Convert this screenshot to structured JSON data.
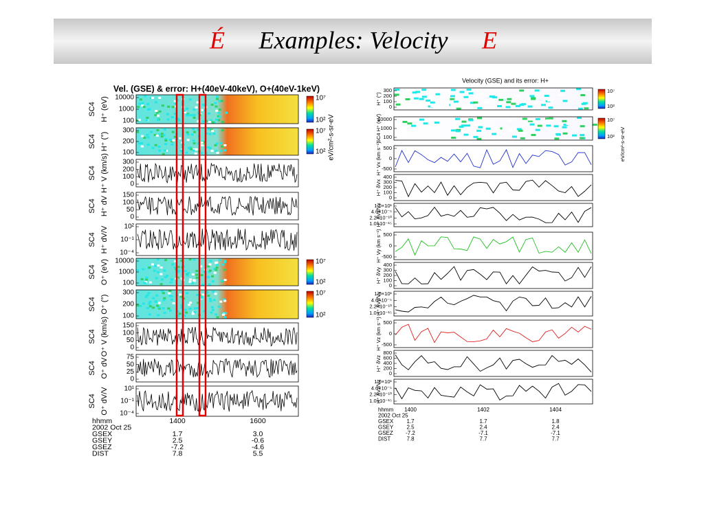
{
  "title": {
    "mark_left": "É",
    "text": "Examples: Velocity",
    "mark_right": "E"
  },
  "left_plot": {
    "title": "Vel. (GSE) & error: H+(40eV-40keV), O+(40eV-1keV)",
    "colorbar_label": "eV/cm²-s-sr-eV",
    "colorbar_ticks": [
      "10⁷",
      "10²"
    ],
    "panels": [
      {
        "sc": "SC4",
        "label": "H⁺ (eV)",
        "ticks": [
          "10000",
          "1000",
          "100"
        ]
      },
      {
        "sc": "SC4",
        "label": "H⁺ (°)",
        "ticks": [
          "300",
          "200",
          "100"
        ]
      },
      {
        "sc": "SC4",
        "label": "H⁺ V (km/s)",
        "ticks": [
          "300",
          "200",
          "100",
          "0"
        ]
      },
      {
        "sc": "SC4",
        "label": "H⁺ dV",
        "ticks": [
          "150",
          "100",
          "50",
          "0"
        ]
      },
      {
        "sc": "SC4",
        "label": "H⁺ dV/V",
        "ticks": [
          "10²",
          "10⁻¹",
          "10⁻⁴"
        ]
      },
      {
        "sc": "SC4",
        "label": "O⁺ (eV)",
        "ticks": [
          "10000",
          "1000",
          "100"
        ]
      },
      {
        "sc": "SC4",
        "label": "O⁺ (°)",
        "ticks": [
          "300",
          "200",
          "100"
        ]
      },
      {
        "sc": "SC4",
        "label": "O⁺ V (km/s)",
        "ticks": [
          "150",
          "100",
          "50",
          "0"
        ]
      },
      {
        "sc": "SC4",
        "label": "O⁺ dV",
        "ticks": [
          "75",
          "50",
          "25",
          "0"
        ]
      },
      {
        "sc": "SC4",
        "label": "O⁺ dV/V",
        "ticks": [
          "10¹",
          "10⁻¹",
          "10⁻⁴"
        ]
      }
    ],
    "footer": {
      "head": [
        "hhmm",
        "1400",
        "1600"
      ],
      "date": "2002 Oct 25",
      "rows": [
        [
          "GSEX",
          "1.7",
          "3.0"
        ],
        [
          "GSEY",
          "2.5",
          "-0.6"
        ],
        [
          "GSEZ",
          "-7.2",
          "-4.6"
        ],
        [
          "DIST",
          "7.8",
          "5.5"
        ]
      ]
    }
  },
  "right_plot": {
    "title": "Velocity (GSE) and its error: H+",
    "colorbar_label": "eV/cm²-s-sr-eV",
    "colorbar_ticks": [
      "10⁷",
      "10²"
    ],
    "panels": [
      {
        "label": "H⁺ (°)",
        "ticks": [
          "300",
          "200",
          "100",
          "0"
        ]
      },
      {
        "label": "SC4 H⁺ (eV)",
        "ticks": [
          "10000",
          "1000",
          "100"
        ]
      },
      {
        "label": "H⁺ Vx (km s⁻¹)",
        "ticks": [
          "500",
          "0",
          "-500"
        ]
      },
      {
        "label": "H⁺ δVx",
        "ticks": [
          "400",
          "300",
          "200",
          "100",
          "0"
        ]
      },
      {
        "label": "H⁺ δVx/Vx",
        "ticks": [
          "1.0×10¹",
          "4.6×10⁻⁵",
          "2.2×10⁻¹⁰",
          "1.0×10⁻¹⁵"
        ]
      },
      {
        "label": "H⁺ Vy (km s⁻¹)",
        "ticks": [
          "500",
          "0",
          "-500"
        ]
      },
      {
        "label": "H⁺ δVy",
        "ticks": [
          "400",
          "300",
          "200",
          "100",
          "0"
        ]
      },
      {
        "label": "H⁺ δVy/Vy",
        "ticks": [
          "1.0×10¹",
          "4.6×10⁻⁵",
          "2.2×10⁻¹⁰",
          "1.0×10⁻¹⁵"
        ]
      },
      {
        "label": "H⁺ Vz (km s⁻¹)",
        "ticks": [
          "500",
          "0",
          "-500"
        ]
      },
      {
        "label": "H⁺ δVz",
        "ticks": [
          "800",
          "600",
          "400",
          "200",
          "0"
        ]
      },
      {
        "label": "H⁺ δVz/Vz",
        "ticks": [
          "1.0×10¹",
          "4.6×10⁻⁵",
          "2.2×10⁻¹⁰",
          "1.0×10⁻¹⁵"
        ]
      }
    ],
    "footer": {
      "head": [
        "hhmm",
        "1400",
        "1402",
        "1404"
      ],
      "date": "2002 Oct 25",
      "rows": [
        [
          "GSEX",
          "1.7",
          "1.7",
          "1.8"
        ],
        [
          "GSEY",
          "2.5",
          "2.4",
          "2.4"
        ],
        [
          "GSEZ",
          "-7.2",
          "-7.1",
          "-7.1"
        ],
        [
          "DIST",
          "7.8",
          "7.7",
          "7.7"
        ]
      ]
    }
  }
}
